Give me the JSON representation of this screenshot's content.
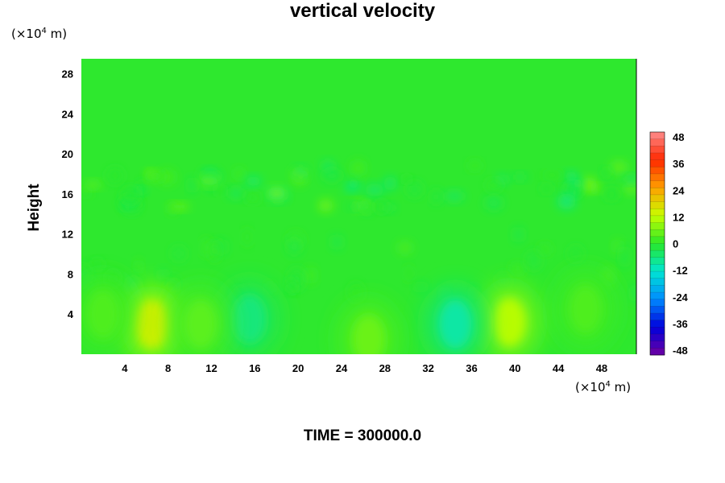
{
  "chart_data": {
    "type": "heatmap",
    "title": "vertical velocity",
    "ylabel": "Height",
    "y_unit_prefix": "(×10",
    "y_unit_exp": "4",
    "y_unit_suffix": " m)",
    "x_unit_prefix": "(×10",
    "x_unit_exp": "4",
    "x_unit_suffix": " m)",
    "xlim": [
      0,
      51.2
    ],
    "ylim": [
      0,
      29.5
    ],
    "x_ticks": [
      4,
      8,
      12,
      16,
      20,
      24,
      28,
      32,
      36,
      40,
      44,
      48
    ],
    "y_ticks": [
      4,
      8,
      12,
      16,
      20,
      24,
      28
    ],
    "colorbar": {
      "ticks": [
        48,
        36,
        24,
        12,
        0,
        -12,
        -24,
        -36,
        -48
      ],
      "min": -48,
      "max": 48
    },
    "features": [
      {
        "x": 6.5,
        "y": 3.0,
        "value": 14
      },
      {
        "x": 39.5,
        "y": 3.2,
        "value": 11
      },
      {
        "x": 34.5,
        "y": 3.0,
        "value": -9
      },
      {
        "x": 15.5,
        "y": 3.5,
        "value": -6
      },
      {
        "x": 26.5,
        "y": 1.5,
        "value": 5
      },
      {
        "x": 2.0,
        "y": 4.0,
        "value": 3
      },
      {
        "x": 46.5,
        "y": 4.5,
        "value": 3
      },
      {
        "x": 11.0,
        "y": 3.0,
        "value": 4
      }
    ],
    "footer": "TIME = 300000.0"
  }
}
